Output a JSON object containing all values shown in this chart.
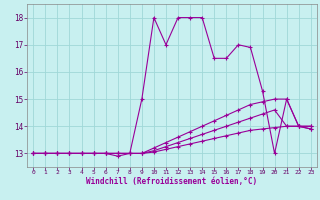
{
  "xlabel": "Windchill (Refroidissement éolien,°C)",
  "ylabel": "",
  "bg_color": "#c8f0f0",
  "line_color": "#990099",
  "grid_color": "#a0d8d8",
  "xlim": [
    -0.5,
    23.5
  ],
  "ylim": [
    12.5,
    18.5
  ],
  "yticks": [
    13,
    14,
    15,
    16,
    17,
    18
  ],
  "xticks": [
    0,
    1,
    2,
    3,
    4,
    5,
    6,
    7,
    8,
    9,
    10,
    11,
    12,
    13,
    14,
    15,
    16,
    17,
    18,
    19,
    20,
    21,
    22,
    23
  ],
  "lines": [
    {
      "x": [
        0,
        1,
        2,
        3,
        4,
        5,
        6,
        7,
        8,
        9,
        10,
        11,
        12,
        13,
        14,
        15,
        16,
        17,
        18,
        19,
        20,
        21,
        22,
        23
      ],
      "y": [
        13,
        13,
        13,
        13,
        13,
        13,
        13,
        12.9,
        13,
        15,
        18,
        17,
        18,
        18,
        18,
        16.5,
        16.5,
        17,
        16.9,
        15.3,
        13,
        15,
        14,
        13.9
      ]
    },
    {
      "x": [
        0,
        1,
        2,
        3,
        4,
        5,
        6,
        7,
        8,
        9,
        10,
        11,
        12,
        13,
        14,
        15,
        16,
        17,
        18,
        19,
        20,
        21,
        22,
        23
      ],
      "y": [
        13,
        13,
        13,
        13,
        13,
        13,
        13,
        13,
        13,
        13,
        13.2,
        13.4,
        13.6,
        13.8,
        14.0,
        14.2,
        14.4,
        14.6,
        14.8,
        14.9,
        15.0,
        15.0,
        14.0,
        14.0
      ]
    },
    {
      "x": [
        0,
        1,
        2,
        3,
        4,
        5,
        6,
        7,
        8,
        9,
        10,
        11,
        12,
        13,
        14,
        15,
        16,
        17,
        18,
        19,
        20,
        21,
        22,
        23
      ],
      "y": [
        13,
        13,
        13,
        13,
        13,
        13,
        13,
        13,
        13,
        13,
        13.1,
        13.25,
        13.4,
        13.55,
        13.7,
        13.85,
        14.0,
        14.15,
        14.3,
        14.45,
        14.6,
        14.0,
        14.0,
        14.0
      ]
    },
    {
      "x": [
        0,
        1,
        2,
        3,
        4,
        5,
        6,
        7,
        8,
        9,
        10,
        11,
        12,
        13,
        14,
        15,
        16,
        17,
        18,
        19,
        20,
        21,
        22,
        23
      ],
      "y": [
        13,
        13,
        13,
        13,
        13,
        13,
        13,
        13,
        13,
        13,
        13.05,
        13.15,
        13.25,
        13.35,
        13.45,
        13.55,
        13.65,
        13.75,
        13.85,
        13.9,
        13.95,
        14.0,
        14.0,
        13.9
      ]
    }
  ]
}
